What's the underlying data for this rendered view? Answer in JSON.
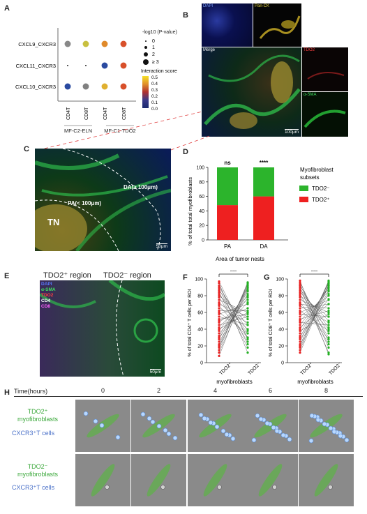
{
  "panels": {
    "A": {
      "label": "A",
      "rows": [
        "CXCL9_CXCR3",
        "CXCL11_CXCR3",
        "CXCL10_CXCR3"
      ],
      "cols": [
        "CD4T",
        "CD8T",
        "CD4T",
        "CD8T"
      ],
      "groups": [
        "MF-C2-ELN",
        "MF-C1-TDO2"
      ],
      "size_legend_title": "-log10 (P-value)",
      "size_legend_values": [
        "0",
        "1",
        "2",
        "≥ 3"
      ],
      "color_legend_title": "Interaction score",
      "color_legend_ticks": [
        "0.5",
        "0.4",
        "0.3",
        "0.2",
        "0.1",
        "0.0"
      ],
      "dots": [
        [
          {
            "color": "#888888",
            "size": 3
          },
          {
            "color": "#c8c040",
            "size": 3
          },
          {
            "color": "#e08a2a",
            "size": 3
          },
          {
            "color": "#d8502a",
            "size": 3
          }
        ],
        [
          {
            "color": "#222222",
            "size": 0
          },
          {
            "color": "#222222",
            "size": 0
          },
          {
            "color": "#2a4aa0",
            "size": 3
          },
          {
            "color": "#d8502a",
            "size": 3
          }
        ],
        [
          {
            "color": "#2a4aa0",
            "size": 3
          },
          {
            "color": "#808080",
            "size": 3
          },
          {
            "color": "#e0b030",
            "size": 3
          },
          {
            "color": "#d8502a",
            "size": 3
          }
        ]
      ]
    },
    "B": {
      "label": "B",
      "tiles": {
        "dapi": "DAPI",
        "pan_ck": "Pan-CK",
        "merge": "Merge",
        "tdo2": "TDO2",
        "asma": "α-SMA"
      },
      "scale": "100μm"
    },
    "C": {
      "label": "C",
      "da": "DA(≥ 100μm)",
      "pa": "PA(< 100μm)",
      "tn": "TN",
      "scale": "50μm"
    },
    "D": {
      "label": "D",
      "ylabel": "% of total total myofibroblasts",
      "xlabel": "Area of tumor nests",
      "sig": [
        "ns",
        "****"
      ],
      "legend_title": "Myofibroblast subsets",
      "legend_items": [
        "TDO2⁻",
        "TDO2⁺"
      ]
    },
    "E": {
      "label": "E",
      "region_pos": "TDO2⁺ region",
      "region_neg": "TDO2⁻ region",
      "channels": [
        "DAPI",
        "α-SMA",
        "TDO2",
        "CD4",
        "CD8"
      ],
      "scale": "50μm"
    },
    "F": {
      "label": "F",
      "ylabel": "% of total CD4⁺ T cells per ROI",
      "xlabel": "myofibroblasts",
      "sig": "***"
    },
    "G": {
      "label": "G",
      "ylabel": "% of total CD8⁺ T cells per ROI",
      "xlabel": "myofibroblasts",
      "sig": "***"
    },
    "H": {
      "label": "H",
      "time_title": "Time(hours)",
      "row1_line1": "TDO2⁺",
      "row1_line2": "myofibroblasts",
      "row1_cells": "CXCR3⁺T cells",
      "row2_line1": "TDO2⁻",
      "row2_line2": "myofibroblasts",
      "row2_cells": "CXCR3⁺T cells"
    }
  },
  "chart_data": [
    {
      "type": "bar",
      "panel": "D",
      "categories": [
        "PA",
        "DA"
      ],
      "series": [
        {
          "name": "TDO2⁺",
          "values": [
            48,
            60
          ]
        },
        {
          "name": "TDO2⁻",
          "values": [
            52,
            40
          ]
        }
      ],
      "xlabel": "Area of tumor nests",
      "ylabel": "% of total total myofibroblasts",
      "ylim": [
        0,
        100
      ],
      "yticks": [
        "0",
        "20",
        "40",
        "60",
        "80",
        "100"
      ],
      "stacked": true
    },
    {
      "type": "scatter",
      "panel": "F",
      "categories": [
        "TDO2⁺",
        "TDO2⁻"
      ],
      "ylabel": "% of total CD4⁺ T cells per ROI",
      "ylim": [
        0,
        100
      ],
      "yticks": [
        "0",
        "20",
        "40",
        "60",
        "80",
        "100"
      ],
      "pairs": [
        [
          97,
          28
        ],
        [
          95,
          12
        ],
        [
          92,
          30
        ],
        [
          90,
          38
        ],
        [
          88,
          22
        ],
        [
          86,
          45
        ],
        [
          84,
          18
        ],
        [
          82,
          35
        ],
        [
          80,
          52
        ],
        [
          78,
          25
        ],
        [
          75,
          60
        ],
        [
          72,
          40
        ],
        [
          70,
          55
        ],
        [
          68,
          30
        ],
        [
          65,
          48
        ],
        [
          62,
          62
        ],
        [
          60,
          35
        ],
        [
          58,
          70
        ],
        [
          55,
          45
        ],
        [
          52,
          58
        ],
        [
          50,
          65
        ],
        [
          48,
          75
        ],
        [
          45,
          55
        ],
        [
          42,
          80
        ],
        [
          40,
          60
        ],
        [
          38,
          85
        ],
        [
          35,
          72
        ],
        [
          32,
          88
        ],
        [
          30,
          78
        ],
        [
          28,
          90
        ],
        [
          25,
          82
        ],
        [
          22,
          92
        ],
        [
          20,
          86
        ],
        [
          18,
          94
        ],
        [
          15,
          96
        ],
        [
          12,
          90
        ],
        [
          8,
          95
        ]
      ]
    },
    {
      "type": "scatter",
      "panel": "G",
      "categories": [
        "TDO2⁺",
        "TDO2⁻"
      ],
      "ylabel": "% of total CD8⁺ T cells per ROI",
      "ylim": [
        0,
        100
      ],
      "yticks": [
        "0",
        "20",
        "40",
        "60",
        "80",
        "100"
      ],
      "pairs": [
        [
          98,
          10
        ],
        [
          96,
          25
        ],
        [
          94,
          18
        ],
        [
          92,
          35
        ],
        [
          90,
          12
        ],
        [
          88,
          42
        ],
        [
          86,
          30
        ],
        [
          84,
          50
        ],
        [
          82,
          22
        ],
        [
          80,
          55
        ],
        [
          78,
          40
        ],
        [
          75,
          60
        ],
        [
          72,
          28
        ],
        [
          70,
          65
        ],
        [
          68,
          48
        ],
        [
          65,
          70
        ],
        [
          62,
          38
        ],
        [
          60,
          75
        ],
        [
          58,
          55
        ],
        [
          55,
          80
        ],
        [
          52,
          62
        ],
        [
          50,
          85
        ],
        [
          48,
          45
        ],
        [
          45,
          88
        ],
        [
          42,
          70
        ],
        [
          40,
          90
        ],
        [
          38,
          58
        ],
        [
          35,
          92
        ],
        [
          32,
          76
        ],
        [
          30,
          95
        ],
        [
          28,
          82
        ],
        [
          25,
          96
        ],
        [
          22,
          86
        ],
        [
          20,
          98
        ],
        [
          18,
          92
        ],
        [
          15,
          97
        ],
        [
          12,
          94
        ]
      ]
    }
  ],
  "time_points": [
    "0",
    "2",
    "4",
    "6",
    "8"
  ]
}
